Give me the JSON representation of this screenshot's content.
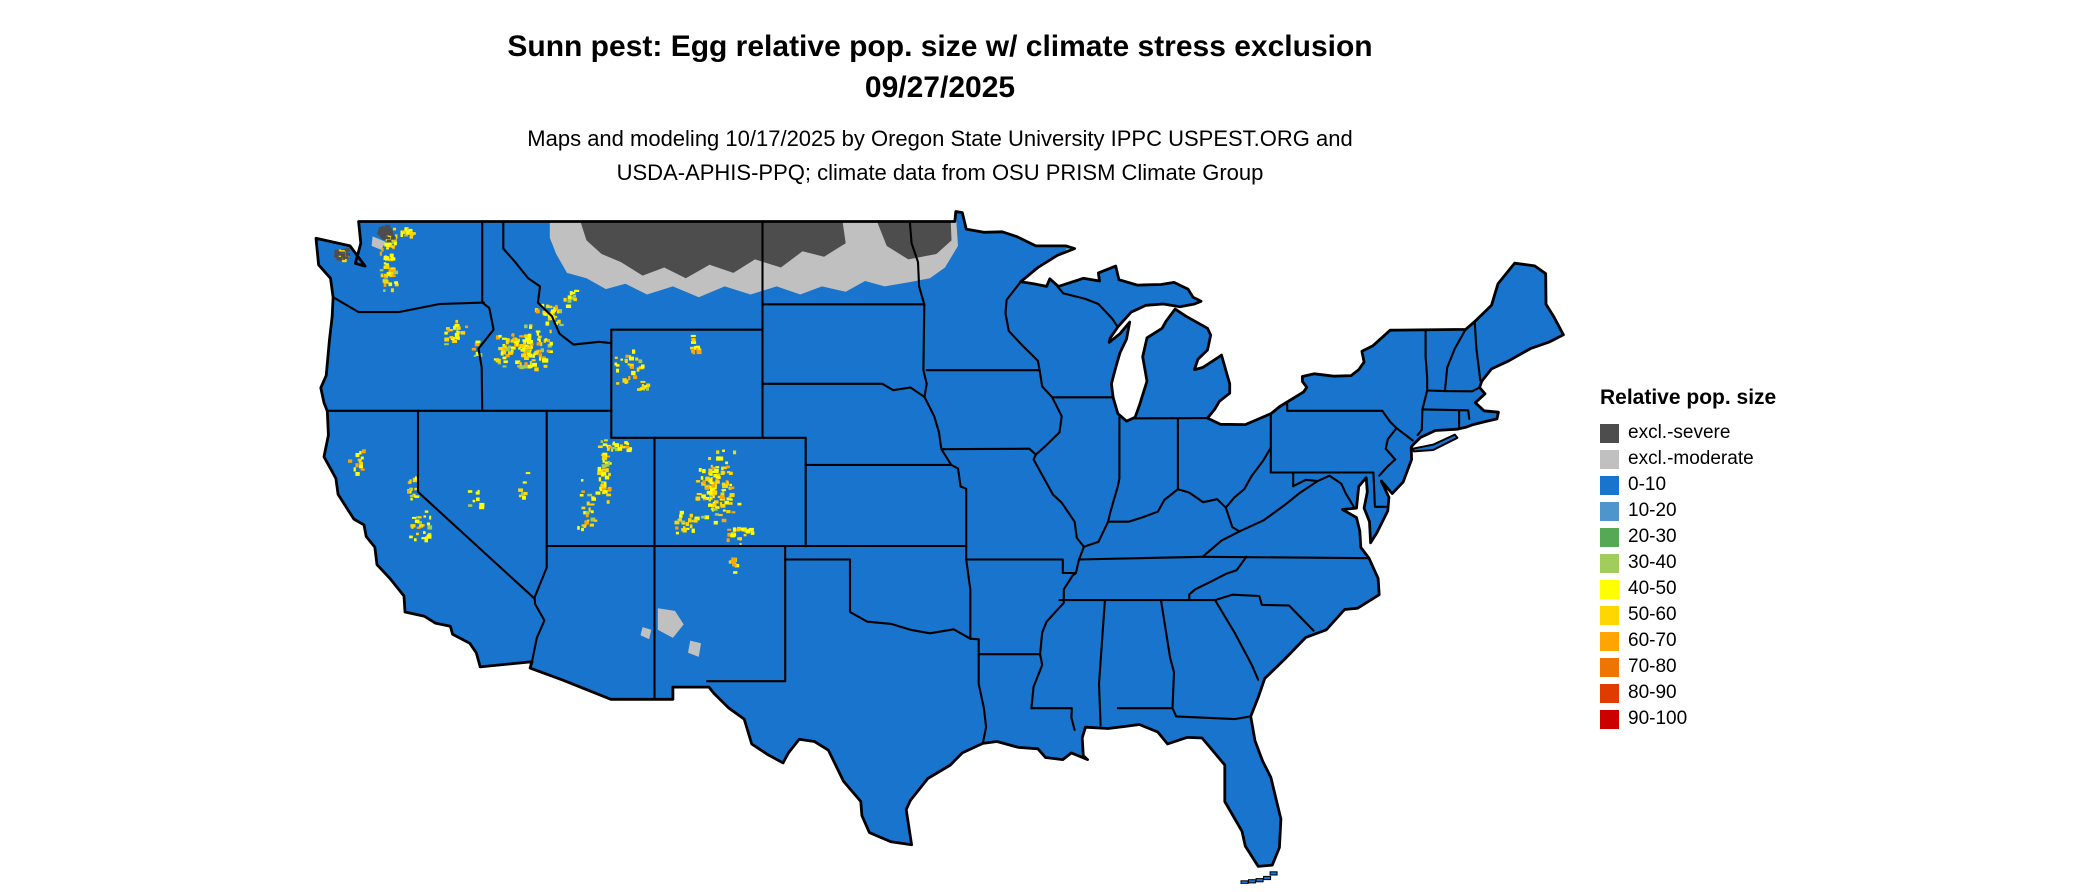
{
  "title": {
    "line1": "Sunn pest: Egg relative pop. size w/ climate stress exclusion",
    "line2": "09/27/2025"
  },
  "subtitle": {
    "line1": "Maps and modeling 10/17/2025 by Oregon State University IPPC USPEST.ORG and",
    "line2": "USDA-APHIS-PPQ; climate data from OSU PRISM Climate Group"
  },
  "legend": {
    "title": "Relative pop. size",
    "items": [
      {
        "label": "excl.-severe",
        "color": "#4d4d4d"
      },
      {
        "label": "excl.-moderate",
        "color": "#c0c0c0"
      },
      {
        "label": "0-10",
        "color": "#1874cd"
      },
      {
        "label": "10-20",
        "color": "#4f94cd"
      },
      {
        "label": "20-30",
        "color": "#55a854"
      },
      {
        "label": "30-40",
        "color": "#a2cd5a"
      },
      {
        "label": "40-50",
        "color": "#ffff00"
      },
      {
        "label": "50-60",
        "color": "#ffd700"
      },
      {
        "label": "60-70",
        "color": "#ffa500"
      },
      {
        "label": "70-80",
        "color": "#ee7600"
      },
      {
        "label": "80-90",
        "color": "#e03c00"
      },
      {
        "label": "90-100",
        "color": "#cd0000"
      }
    ]
  },
  "map": {
    "land_fill": "#1874cd",
    "border_color": "#000000",
    "background": "#ffffff"
  }
}
